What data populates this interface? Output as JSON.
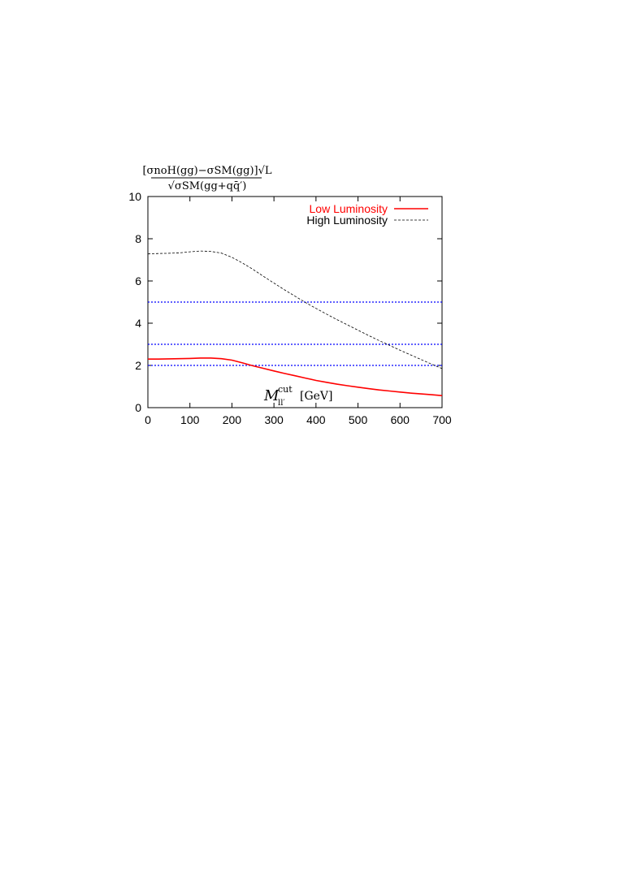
{
  "chart_data": {
    "type": "line",
    "title": "",
    "ylabel": {
      "numerator": "[σnoH(gg)−σSM(gg)]√L",
      "denominator": "√σSM(gg+qq̄′)"
    },
    "xlabel": {
      "main": "M",
      "superscript": "cut",
      "subscript": "ll′",
      "unit": "[GeV]"
    },
    "xlim": [
      0,
      700
    ],
    "ylim": [
      0,
      10
    ],
    "x_ticks": [
      0,
      100,
      200,
      300,
      400,
      500,
      600,
      700
    ],
    "y_ticks": [
      0,
      2,
      4,
      6,
      8,
      10
    ],
    "grid": false,
    "legend_position": "top-right",
    "series": [
      {
        "name": "Low Luminosity",
        "color": "#ff0000",
        "style": "solid",
        "x": [
          0,
          25,
          50,
          75,
          100,
          125,
          150,
          175,
          200,
          225,
          250,
          275,
          300,
          325,
          350,
          375,
          400,
          425,
          450,
          475,
          500,
          525,
          550,
          575,
          600,
          625,
          650,
          675,
          700
        ],
        "y": [
          2.3,
          2.3,
          2.31,
          2.32,
          2.33,
          2.35,
          2.35,
          2.32,
          2.25,
          2.12,
          1.98,
          1.86,
          1.74,
          1.62,
          1.51,
          1.4,
          1.29,
          1.2,
          1.11,
          1.04,
          0.97,
          0.9,
          0.84,
          0.79,
          0.74,
          0.69,
          0.65,
          0.61,
          0.57
        ]
      },
      {
        "name": "High Luminosity",
        "color": "#000000",
        "style": "dashed",
        "x": [
          0,
          25,
          50,
          75,
          100,
          125,
          150,
          175,
          200,
          225,
          250,
          275,
          300,
          325,
          350,
          375,
          400,
          425,
          450,
          475,
          500,
          525,
          550,
          575,
          600,
          625,
          650,
          675,
          700
        ],
        "y": [
          7.28,
          7.3,
          7.31,
          7.33,
          7.38,
          7.42,
          7.4,
          7.32,
          7.12,
          6.85,
          6.55,
          6.22,
          5.9,
          5.58,
          5.28,
          4.98,
          4.7,
          4.43,
          4.17,
          3.92,
          3.67,
          3.42,
          3.18,
          2.95,
          2.72,
          2.5,
          2.28,
          2.06,
          1.85
        ]
      }
    ],
    "reference_lines": [
      {
        "y": 5,
        "color": "#0000ff",
        "style": "dotted"
      },
      {
        "y": 3,
        "color": "#0000ff",
        "style": "dotted"
      },
      {
        "y": 2,
        "color": "#0000ff",
        "style": "dotted"
      }
    ]
  }
}
